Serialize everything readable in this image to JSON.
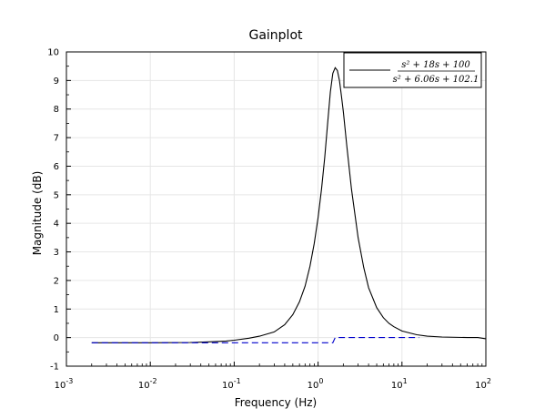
{
  "chart_data": {
    "type": "line",
    "title": "Gainplot",
    "xlabel": "Frequency (Hz)",
    "ylabel": "Magnitude (dB)",
    "xscale": "log",
    "xlim": [
      0.001,
      100
    ],
    "ylim": [
      -1,
      10
    ],
    "grid": true,
    "legend_position": "top-right",
    "x_ticks": [
      {
        "base": "10",
        "exp": "-3"
      },
      {
        "base": "10",
        "exp": "-2"
      },
      {
        "base": "10",
        "exp": "-1"
      },
      {
        "base": "10",
        "exp": "0"
      },
      {
        "base": "10",
        "exp": "1"
      },
      {
        "base": "10",
        "exp": "2"
      }
    ],
    "y_ticks": [
      "-1",
      "0",
      "1",
      "2",
      "3",
      "4",
      "5",
      "6",
      "7",
      "8",
      "9",
      "10"
    ],
    "series": [
      {
        "name_numerator": "s² + 18s + 100",
        "name_denominator": "s² + 6.06s + 102.1",
        "color": "#000000",
        "style": "solid",
        "points": [
          [
            0.002,
            -0.18
          ],
          [
            0.01,
            -0.18
          ],
          [
            0.03,
            -0.17
          ],
          [
            0.05,
            -0.15
          ],
          [
            0.08,
            -0.12
          ],
          [
            0.1,
            -0.09
          ],
          [
            0.15,
            -0.02
          ],
          [
            0.2,
            0.05
          ],
          [
            0.3,
            0.2
          ],
          [
            0.4,
            0.45
          ],
          [
            0.5,
            0.8
          ],
          [
            0.6,
            1.25
          ],
          [
            0.7,
            1.8
          ],
          [
            0.8,
            2.5
          ],
          [
            0.9,
            3.3
          ],
          [
            1.0,
            4.2
          ],
          [
            1.1,
            5.2
          ],
          [
            1.2,
            6.3
          ],
          [
            1.3,
            7.5
          ],
          [
            1.4,
            8.6
          ],
          [
            1.5,
            9.25
          ],
          [
            1.6,
            9.45
          ],
          [
            1.7,
            9.35
          ],
          [
            1.8,
            9.0
          ],
          [
            1.9,
            8.45
          ],
          [
            2.0,
            7.9
          ],
          [
            2.2,
            6.7
          ],
          [
            2.5,
            5.2
          ],
          [
            3.0,
            3.5
          ],
          [
            3.5,
            2.45
          ],
          [
            4.0,
            1.75
          ],
          [
            5.0,
            1.05
          ],
          [
            6.0,
            0.7
          ],
          [
            7.0,
            0.5
          ],
          [
            8.0,
            0.38
          ],
          [
            10.0,
            0.23
          ],
          [
            15.0,
            0.1
          ],
          [
            20.0,
            0.05
          ],
          [
            30.0,
            0.02
          ],
          [
            60.0,
            0.0
          ],
          [
            80.0,
            0.0
          ],
          [
            100.0,
            -0.04
          ]
        ]
      },
      {
        "color": "#0000cc",
        "style": "dashed",
        "points": [
          [
            0.002,
            -0.18
          ],
          [
            1.5,
            -0.18
          ],
          [
            1.6,
            0.0
          ],
          [
            16.0,
            0.0
          ]
        ]
      }
    ]
  }
}
